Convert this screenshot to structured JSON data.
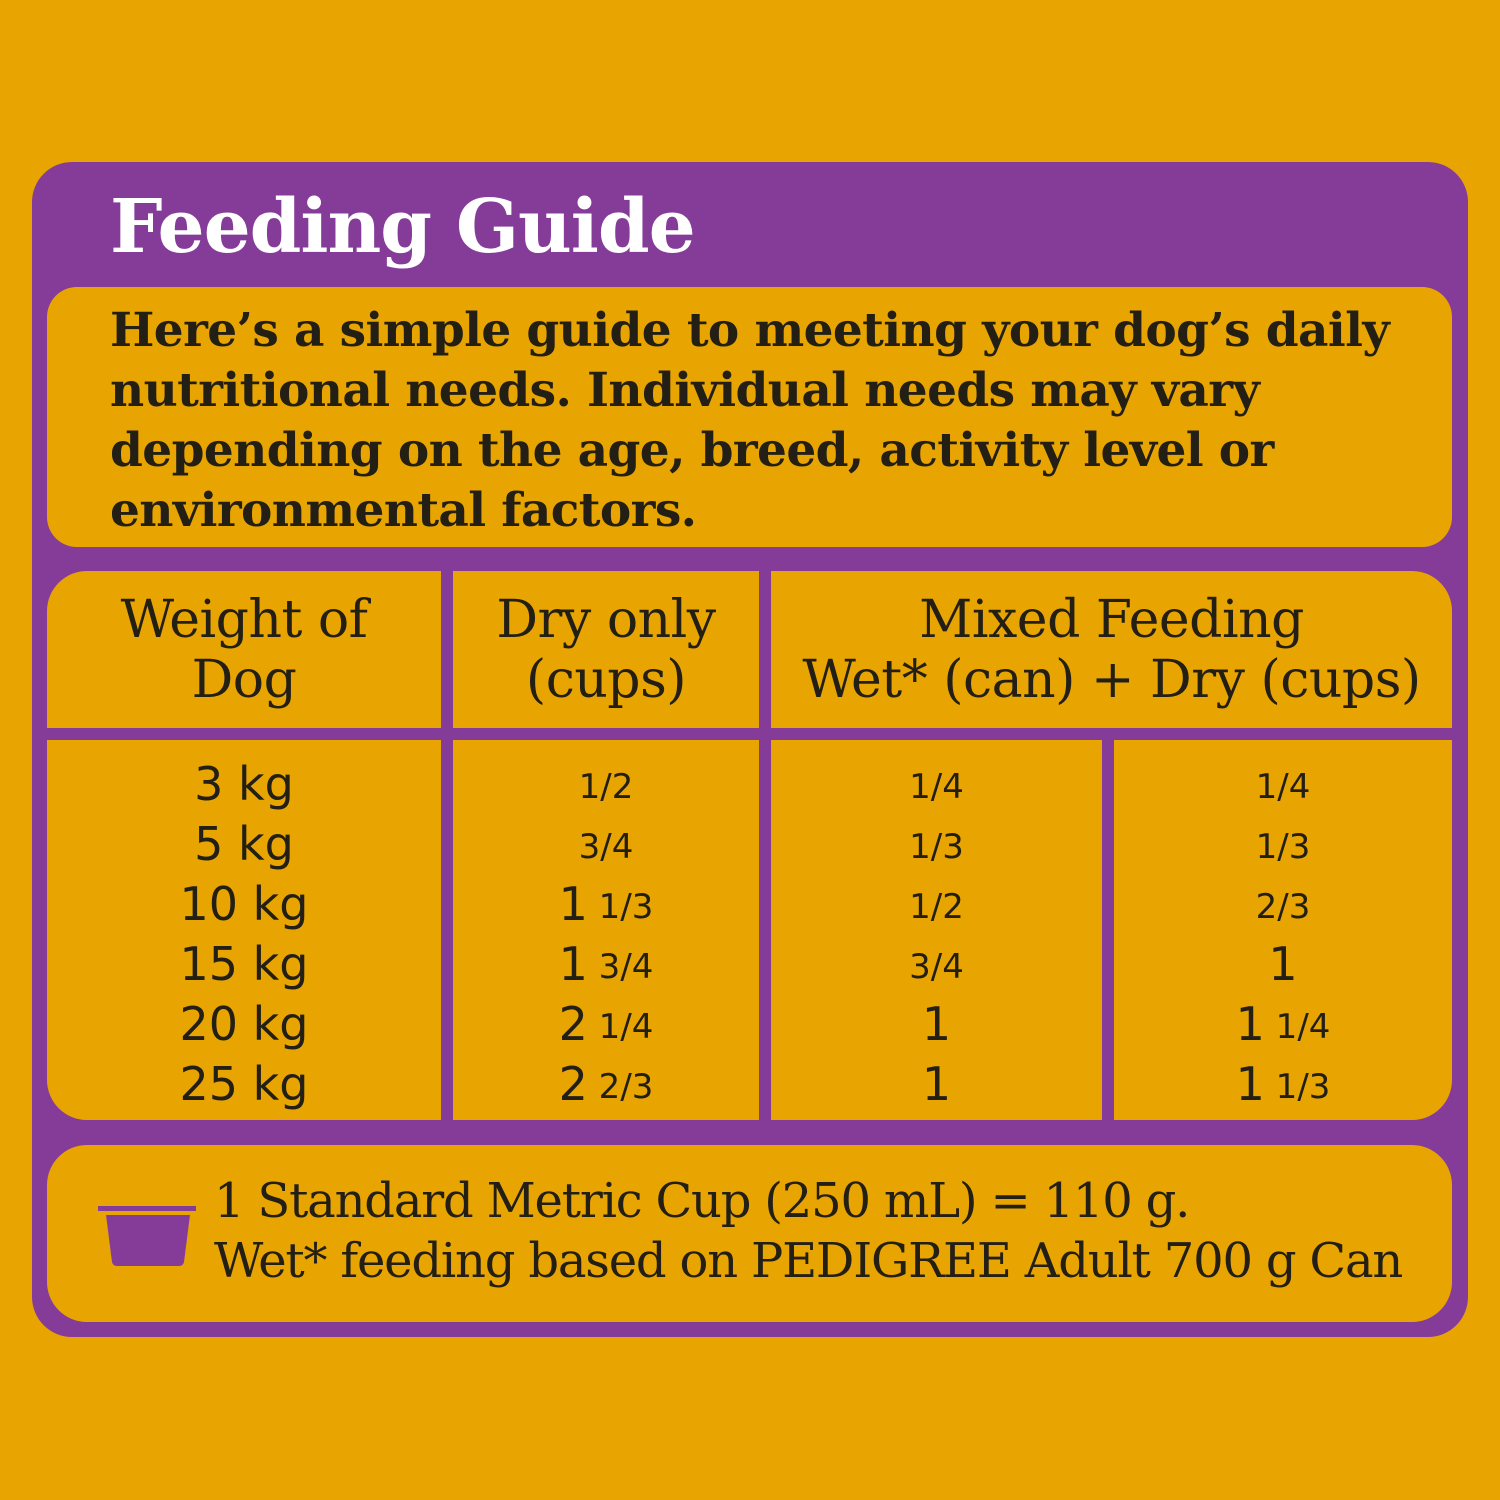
{
  "header": {
    "title": "Feeding Guide"
  },
  "intro": {
    "text": "Here’s a simple guide to meeting your dog’s daily nutritional needs. Individual needs may vary depending on the age, breed, activity level or environmental factors."
  },
  "table": {
    "columns": [
      {
        "line1": "Weight of",
        "line2": "Dog"
      },
      {
        "line1": "Dry only",
        "line2": "(cups)"
      },
      {
        "line1": "Mixed Feeding",
        "line2": "Wet* (can) + Dry (cups)"
      }
    ],
    "rows": [
      {
        "weight": "3 kg",
        "dry_only": "1/2",
        "mixed_wet": "1/4",
        "mixed_dry": "1/4"
      },
      {
        "weight": "5 kg",
        "dry_only": "3/4",
        "mixed_wet": "1/3",
        "mixed_dry": "1/3"
      },
      {
        "weight": "10 kg",
        "dry_only": "1 1/3",
        "mixed_wet": "1/2",
        "mixed_dry": "2/3"
      },
      {
        "weight": "15 kg",
        "dry_only": "1 3/4",
        "mixed_wet": "3/4",
        "mixed_dry": "1"
      },
      {
        "weight": "20 kg",
        "dry_only": "2 1/4",
        "mixed_wet": "1",
        "mixed_dry": "1 1/4"
      },
      {
        "weight": "25 kg",
        "dry_only": "2 2/3",
        "mixed_wet": "1",
        "mixed_dry": "1 1/3"
      }
    ]
  },
  "footer": {
    "icon": "measuring-cup-icon",
    "line1": "1 Standard Metric Cup (250 mL) = 110 g.",
    "line2": "Wet* feeding based on PEDIGREE Adult 700 g Can"
  },
  "colors": {
    "background": "#E8A502",
    "accent": "#853C99",
    "title_text": "#FFFFFF",
    "body_text": "#231F14"
  }
}
